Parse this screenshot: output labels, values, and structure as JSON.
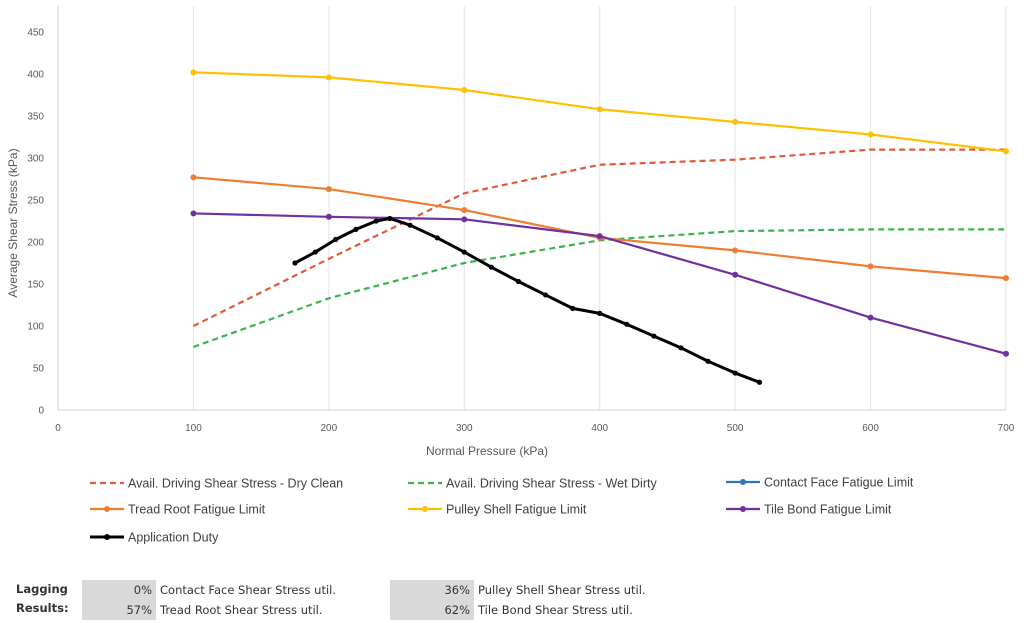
{
  "chart_data": {
    "type": "line",
    "title": "",
    "xlabel": "Normal Pressure (kPa)",
    "ylabel": "Average Shear Stress (kPa)",
    "xlim": [
      0,
      700
    ],
    "ylim": [
      0,
      450
    ],
    "xticks": [
      0,
      100,
      200,
      300,
      400,
      500,
      600,
      700
    ],
    "yticks": [
      0,
      50,
      100,
      150,
      200,
      250,
      300,
      350,
      400,
      450
    ],
    "grid": "vertical",
    "legend_position": "bottom",
    "series": [
      {
        "name": "Avail. Driving Shear Stress - Dry Clean",
        "color": "#e15a3c",
        "dash": true,
        "marker": false,
        "x": [
          100,
          200,
          300,
          400,
          500,
          600,
          700
        ],
        "y": [
          100,
          180,
          258,
          292,
          298,
          310,
          310
        ]
      },
      {
        "name": "Avail. Driving Shear Stress - Wet Dirty",
        "color": "#3cb44b",
        "dash": true,
        "marker": false,
        "x": [
          100,
          200,
          300,
          400,
          500,
          600,
          700
        ],
        "y": [
          75,
          133,
          175,
          202,
          213,
          215,
          215
        ]
      },
      {
        "name": "Contact Face Fatigue Limit",
        "color": "#2e75b6",
        "dash": false,
        "marker": true,
        "x": [],
        "y": []
      },
      {
        "name": "Tread Root Fatigue Limit",
        "color": "#ed7d31",
        "dash": false,
        "marker": true,
        "x": [
          100,
          200,
          300,
          400,
          500,
          600,
          700
        ],
        "y": [
          277,
          263,
          238,
          205,
          190,
          171,
          157
        ]
      },
      {
        "name": "Pulley Shell Fatigue Limit",
        "color": "#ffc000",
        "dash": false,
        "marker": true,
        "x": [
          100,
          200,
          300,
          400,
          500,
          600,
          700
        ],
        "y": [
          402,
          396,
          381,
          358,
          343,
          328,
          308
        ]
      },
      {
        "name": "Tile Bond Fatigue Limit",
        "color": "#7030a0",
        "dash": false,
        "marker": true,
        "x": [
          100,
          200,
          300,
          400,
          500,
          600,
          700
        ],
        "y": [
          234,
          230,
          227,
          207,
          161,
          110,
          67
        ]
      },
      {
        "name": "Application Duty",
        "color": "#000000",
        "dash": false,
        "marker": true,
        "x": [
          175,
          190,
          205,
          220,
          235,
          245,
          260,
          280,
          300,
          320,
          340,
          360,
          380,
          400,
          420,
          440,
          460,
          480,
          500,
          518
        ],
        "y": [
          175,
          188,
          203,
          215,
          225,
          228,
          220,
          205,
          188,
          170,
          153,
          137,
          121,
          115,
          102,
          88,
          74,
          58,
          44,
          33
        ]
      }
    ]
  },
  "results": {
    "label_line1": "Lagging",
    "label_line2": "Results:",
    "items": [
      {
        "pct": "0%",
        "text": "Contact Face Shear Stress util."
      },
      {
        "pct": "57%",
        "text": "Tread Root Shear Stress util."
      },
      {
        "pct": "36%",
        "text": "Pulley Shell Shear Stress util."
      },
      {
        "pct": "62%",
        "text": "Tile Bond Shear Stress util."
      }
    ]
  }
}
